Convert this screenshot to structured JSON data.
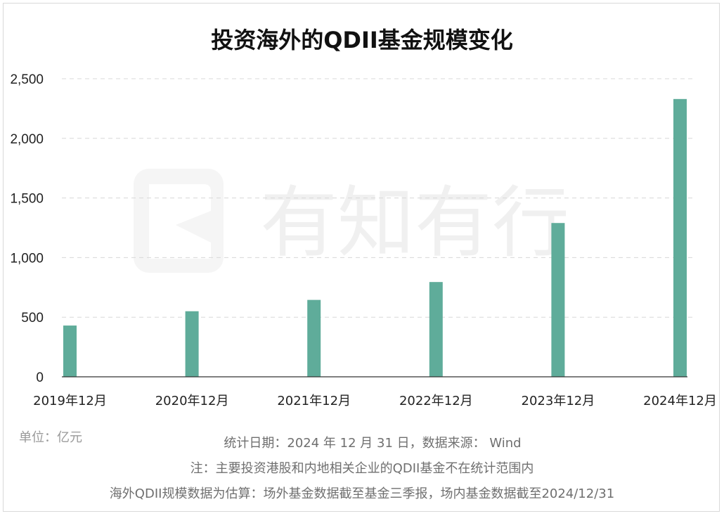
{
  "chart_data": {
    "type": "bar",
    "title": "投资海外的QDII基金规模变化",
    "categories": [
      "2019年12月",
      "2020年12月",
      "2021年12月",
      "2022年12月",
      "2023年12月",
      "2024年12月"
    ],
    "values": [
      430,
      550,
      645,
      795,
      1290,
      2330
    ],
    "ylim": [
      0,
      2500
    ],
    "yticks": [
      0,
      500,
      1000,
      1500,
      2000,
      2500
    ],
    "ytick_labels": [
      "0",
      "500",
      "1,000",
      "1,500",
      "2,000",
      "2,500"
    ],
    "grid": true,
    "bar_color": "#5fac9a",
    "unit_label": "单位：亿元",
    "watermark": "有知有行"
  },
  "notes": {
    "line1": "统计日期：2024 年 12 月 31 日，数据来源： Wind",
    "line2": "注：主要投资港股和内地相关企业的QDII基金不在统计范围内",
    "line3": "海外QDII规模数据为估算：场外基金数据截至基金三季报，场内基金数据截至2024/12/31"
  }
}
